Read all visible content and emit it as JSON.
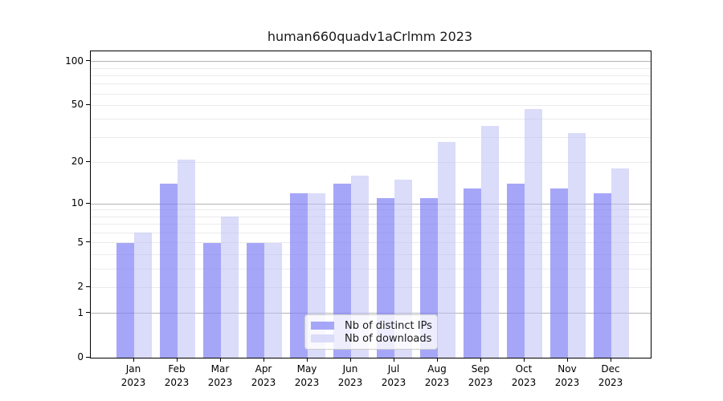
{
  "title": "human660quadv1aCrlmm 2023",
  "chart_data": {
    "type": "bar",
    "title": "human660quadv1aCrlmm 2023",
    "categories": [
      "Jan",
      "Feb",
      "Mar",
      "Apr",
      "May",
      "Jun",
      "Jul",
      "Aug",
      "Sep",
      "Oct",
      "Nov",
      "Dec"
    ],
    "year": "2023",
    "series": [
      {
        "name": "Nb of distinct IPs",
        "color": "#a6a6f8",
        "fill": "rgba(128,128,245,0.70)",
        "values": [
          5,
          14,
          5,
          5,
          12,
          14,
          11,
          11,
          13,
          14,
          13,
          12
        ]
      },
      {
        "name": "Nb of downloads",
        "color": "#dbdbfa",
        "fill": "rgba(190,190,245,0.55)",
        "values": [
          6,
          21,
          8,
          5,
          12,
          16,
          15,
          28,
          36,
          47,
          32,
          18
        ]
      }
    ],
    "xlabel": "",
    "ylabel": "",
    "yscale": "log1p",
    "yticks": [
      0,
      1,
      2,
      5,
      10,
      20,
      50,
      100
    ],
    "major_gridlines": [
      1,
      10,
      100
    ],
    "minor_gridlines": [
      2,
      3,
      4,
      5,
      6,
      7,
      8,
      9,
      20,
      30,
      40,
      50,
      60,
      70,
      80,
      90
    ],
    "ylim": [
      0,
      118
    ],
    "grid": true,
    "legend_position": "bottom-center"
  },
  "colors": {
    "background": "#ffffff",
    "axis": "#000000",
    "minor_grid": "#ebebeb",
    "major_grid": "#b3b3b3",
    "ips_bar": "#a6a6f8",
    "downloads_bar": "#dbdbfa"
  }
}
